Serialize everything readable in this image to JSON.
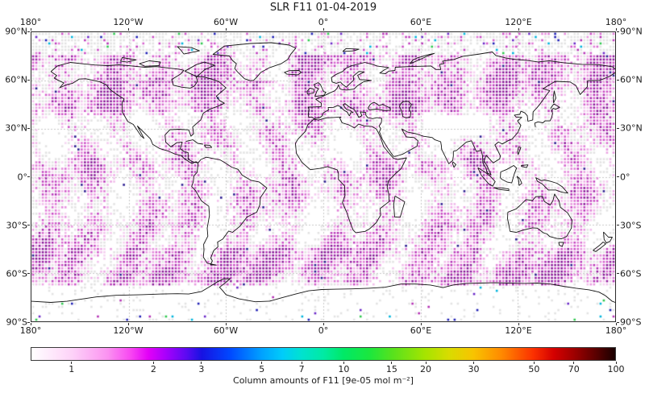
{
  "title": "SLR F11 01-04-2019",
  "axes": {
    "lon_ticks": [
      {
        "label": "180°",
        "lon": -180
      },
      {
        "label": "120°W",
        "lon": -120
      },
      {
        "label": "60°W",
        "lon": -60
      },
      {
        "label": "0°",
        "lon": 0
      },
      {
        "label": "60°E",
        "lon": 60
      },
      {
        "label": "120°E",
        "lon": 120
      },
      {
        "label": "180°",
        "lon": 180
      }
    ],
    "lat_ticks": [
      {
        "label": "90°N",
        "lat": 90
      },
      {
        "label": "60°N",
        "lat": 60
      },
      {
        "label": "30°N",
        "lat": 30
      },
      {
        "label": "0°",
        "lat": 0
      },
      {
        "label": "30°S",
        "lat": -30
      },
      {
        "label": "60°S",
        "lat": -60
      },
      {
        "label": "90°S",
        "lat": -90
      }
    ]
  },
  "colorbar": {
    "label": "Column amounts of F11 [9e-05 mol m⁻²]",
    "scale": "log",
    "ticks": [
      1,
      2,
      3,
      5,
      7,
      10,
      15,
      20,
      30,
      50,
      70,
      100
    ],
    "vmin": 0.7,
    "vmax": 100
  },
  "chart_data": {
    "type": "heatmap",
    "subtype": "global gridded satellite retrieval dot map (equirectangular)",
    "title": "SLR F11 01-04-2019",
    "variable": "Column amounts of F11",
    "units": "9e-05 mol m⁻²",
    "lon_range": [
      -180,
      180
    ],
    "lat_range": [
      -90,
      90
    ],
    "grid_resolution_deg": 2,
    "gridlines": {
      "lon": [
        -120,
        -60,
        0,
        60,
        120
      ],
      "lat": [
        -60,
        -30,
        0,
        30,
        60
      ],
      "style": "dashed gray"
    },
    "coastlines": "black outlines, no land fill",
    "colorbar": {
      "scale": "log",
      "range": [
        0.7,
        100
      ],
      "ticks": [
        1,
        2,
        3,
        5,
        7,
        10,
        15,
        20,
        30,
        50,
        70,
        100
      ],
      "colormap_stops": [
        {
          "pos": 0.0,
          "color": "#ffffff"
        },
        {
          "pos": 0.07,
          "color": "#fdd2f8"
        },
        {
          "pos": 0.13,
          "color": "#fb93f1"
        },
        {
          "pos": 0.17,
          "color": "#f847f2"
        },
        {
          "pos": 0.2,
          "color": "#e300f8"
        },
        {
          "pos": 0.23,
          "color": "#a800fc"
        },
        {
          "pos": 0.265,
          "color": "#5c0af2"
        },
        {
          "pos": 0.292,
          "color": "#1712e2"
        },
        {
          "pos": 0.34,
          "color": "#0048ff"
        },
        {
          "pos": 0.395,
          "color": "#00a2ff"
        },
        {
          "pos": 0.43,
          "color": "#00ccfa"
        },
        {
          "pos": 0.463,
          "color": "#00e2cf"
        },
        {
          "pos": 0.5,
          "color": "#00eaa4"
        },
        {
          "pos": 0.535,
          "color": "#00e966"
        },
        {
          "pos": 0.58,
          "color": "#1ce73d"
        },
        {
          "pos": 0.617,
          "color": "#55e21e"
        },
        {
          "pos": 0.675,
          "color": "#a6e400"
        },
        {
          "pos": 0.715,
          "color": "#d8dc00"
        },
        {
          "pos": 0.757,
          "color": "#f8c400"
        },
        {
          "pos": 0.805,
          "color": "#ff8a00"
        },
        {
          "pos": 0.86,
          "color": "#fb3000"
        },
        {
          "pos": 0.895,
          "color": "#d40000"
        },
        {
          "pos": 0.928,
          "color": "#a10000"
        },
        {
          "pos": 0.965,
          "color": "#5e0000"
        },
        {
          "pos": 1.0,
          "color": "#190000"
        }
      ]
    },
    "data_pattern": {
      "description": "Dense ~2°x2° grid of square dots over the whole globe; most values ~0.7–2 (pale gray/pink to magenta), broad wavy vertical orbit-swath bands of enhanced magenta, pale zones over subtropics, deserts, Tibet, Andes and ice sheets; sparse coverage poleward of ~75° with scattered outlier dots (dark blue, cyan, green, purple) up to ~3–15; enhanced magenta band along the Southern Ocean near 50–66°S; almost no data over the Antarctic interior.",
      "low_value_dot_color": "#e3e3e3",
      "typical_dot_colors": [
        "#f6d8f2",
        "#eeaae6",
        "#df7bd6",
        "#cc4ec6",
        "#b02cb2",
        "#8a1898"
      ],
      "outlier_dot_colors": [
        "#1f1fb4",
        "#00b4dc",
        "#2fc84f",
        "#b431b4",
        "#6a28c8"
      ]
    }
  }
}
